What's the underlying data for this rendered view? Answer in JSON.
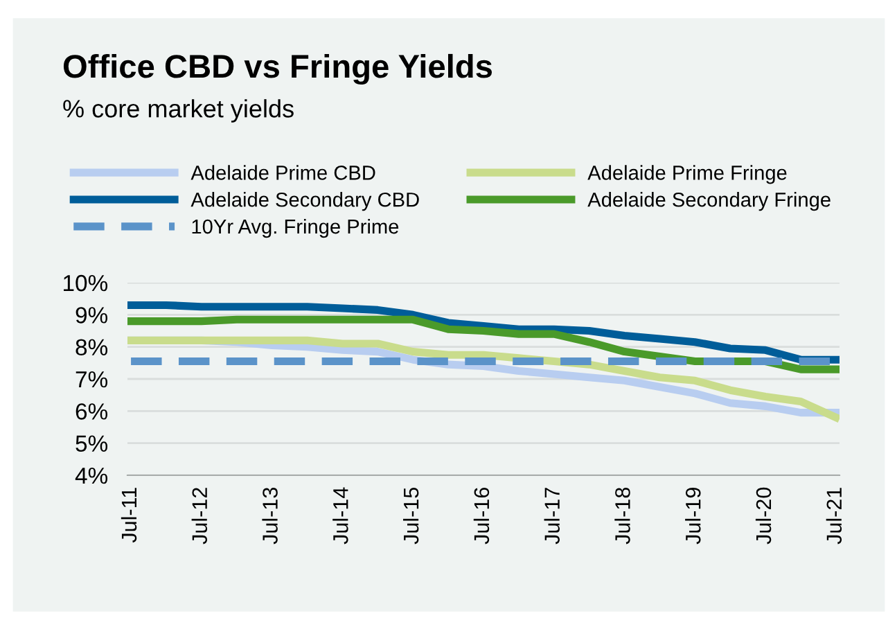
{
  "chart_data": {
    "type": "line",
    "title": "Office CBD vs Fringe Yields",
    "subtitle": "% core market yields",
    "categories": [
      "Jul-11",
      null,
      "Jul-12",
      null,
      "Jul-13",
      null,
      "Jul-14",
      null,
      "Jul-15",
      null,
      "Jul-16",
      null,
      "Jul-17",
      null,
      "Jul-18",
      null,
      "Jul-19",
      null,
      "Jul-20",
      null,
      "Jul-21"
    ],
    "series": [
      {
        "name": "Adelaide Prime CBD",
        "color": "#b8cdf0",
        "values": [
          8.2,
          8.2,
          8.2,
          8.15,
          8.05,
          8.0,
          7.9,
          7.85,
          7.6,
          7.45,
          7.4,
          7.25,
          7.15,
          7.05,
          6.95,
          6.75,
          6.55,
          6.25,
          6.15,
          5.95,
          5.95
        ]
      },
      {
        "name": "Adelaide Prime Fringe",
        "color": "#c9dc8c",
        "values": [
          8.2,
          8.2,
          8.2,
          8.2,
          8.2,
          8.2,
          8.1,
          8.1,
          7.85,
          7.75,
          7.75,
          7.65,
          7.55,
          7.45,
          7.25,
          7.05,
          6.95,
          6.65,
          6.45,
          6.3,
          5.8
        ]
      },
      {
        "name": "Adelaide Secondary CBD",
        "color": "#005d99",
        "values": [
          9.3,
          9.3,
          9.25,
          9.25,
          9.25,
          9.25,
          9.2,
          9.15,
          9.0,
          8.75,
          8.65,
          8.55,
          8.55,
          8.5,
          8.35,
          8.25,
          8.15,
          7.95,
          7.9,
          7.6,
          7.6
        ]
      },
      {
        "name": "Adelaide Secondary Fringe",
        "color": "#4a9a2a",
        "values": [
          8.8,
          8.8,
          8.8,
          8.85,
          8.85,
          8.85,
          8.85,
          8.85,
          8.85,
          8.55,
          8.5,
          8.4,
          8.4,
          8.15,
          7.85,
          7.7,
          7.55,
          7.55,
          7.55,
          7.3,
          7.3
        ]
      },
      {
        "name": "10Yr Avg. Fringe Prime",
        "color": "#5b93c9",
        "line_style": "dashed",
        "values": [
          7.55,
          7.55,
          7.55,
          7.55,
          7.55,
          7.55,
          7.55,
          7.55,
          7.55,
          7.55,
          7.55,
          7.55,
          7.55,
          7.55,
          7.55,
          7.55,
          7.55,
          7.55,
          7.55,
          7.55,
          7.55
        ]
      }
    ],
    "ylim": [
      4,
      10
    ],
    "yticks": [
      {
        "value": 4,
        "label": "4%"
      },
      {
        "value": 5,
        "label": "5%"
      },
      {
        "value": 6,
        "label": "6%"
      },
      {
        "value": 7,
        "label": "7%"
      },
      {
        "value": 8,
        "label": "8%"
      },
      {
        "value": 9,
        "label": "9%"
      },
      {
        "value": 10,
        "label": "10%"
      }
    ],
    "grid": "y",
    "legend": "top",
    "marker": "none"
  }
}
